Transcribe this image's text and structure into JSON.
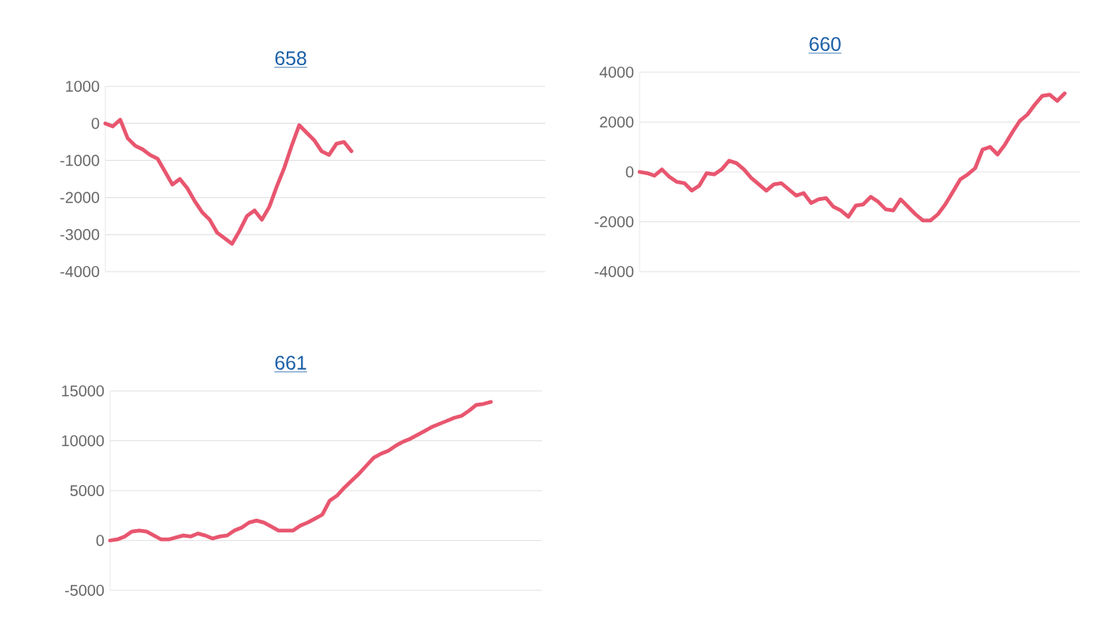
{
  "chart_data": [
    {
      "type": "line",
      "title": "658",
      "categories": [
        null,
        null,
        null,
        null,
        null,
        null,
        null,
        null,
        null,
        null,
        null,
        null,
        null,
        null,
        null,
        null,
        null,
        null,
        null,
        null,
        null,
        null,
        null,
        null,
        null,
        null,
        null,
        null,
        null,
        null,
        null,
        null,
        null,
        null,
        null,
        null,
        null,
        null,
        null,
        null,
        null,
        null,
        null,
        null,
        null,
        null,
        null,
        null,
        null,
        null,
        null,
        null,
        null,
        null,
        null,
        null,
        null,
        null,
        null,
        null
      ],
      "values": [
        0,
        -80,
        100,
        -400,
        -600,
        -700,
        -850,
        -950,
        -1300,
        -1650,
        -1500,
        -1750,
        -2100,
        -2400,
        -2600,
        -2950,
        -3100,
        -3250,
        -2900,
        -2500,
        -2350,
        -2600,
        -2250,
        -1700,
        -1200,
        -600,
        -50,
        -250,
        -450,
        -750,
        -850,
        -550,
        -500,
        -750,
        null,
        null,
        null,
        null,
        null,
        null,
        null,
        null,
        null,
        null,
        null,
        null,
        null,
        null,
        null,
        null,
        null,
        null,
        null,
        null,
        null,
        null,
        null,
        null,
        null,
        null
      ],
      "color": "#e8566f",
      "ylim": [
        -4000,
        1000
      ],
      "yticks": [
        -4000,
        -3000,
        -2000,
        -1000,
        0,
        1000
      ],
      "grid": "y",
      "tick_labels": "y"
    },
    {
      "type": "line",
      "title": "660",
      "categories": [
        null,
        null,
        null,
        null,
        null,
        null,
        null,
        null,
        null,
        null,
        null,
        null,
        null,
        null,
        null,
        null,
        null,
        null,
        null,
        null,
        null,
        null,
        null,
        null,
        null,
        null,
        null,
        null,
        null,
        null,
        null,
        null,
        null,
        null,
        null,
        null,
        null,
        null,
        null,
        null,
        null,
        null,
        null,
        null,
        null,
        null,
        null,
        null,
        null,
        null,
        null,
        null,
        null,
        null,
        null,
        null,
        null,
        null,
        null,
        null
      ],
      "values": [
        0,
        -50,
        -150,
        100,
        -200,
        -400,
        -450,
        -750,
        -550,
        -50,
        -100,
        100,
        450,
        350,
        100,
        -250,
        -500,
        -750,
        -500,
        -450,
        -700,
        -950,
        -850,
        -1250,
        -1100,
        -1050,
        -1400,
        -1550,
        -1800,
        -1350,
        -1300,
        -1000,
        -1200,
        -1500,
        -1550,
        -1100,
        -1400,
        -1700,
        -1950,
        -1950,
        -1700,
        -1300,
        -800,
        -300,
        -100,
        150,
        900,
        1000,
        700,
        1100,
        1600,
        2050,
        2300,
        2700,
        3050,
        3100,
        2850,
        3150,
        null,
        null
      ],
      "color": "#e8566f",
      "ylim": [
        -4000,
        4000
      ],
      "yticks": [
        -4000,
        -2000,
        0,
        2000,
        4000
      ],
      "grid": "y",
      "tick_labels": "y"
    },
    {
      "type": "line",
      "title": "661",
      "categories": [
        null,
        null,
        null,
        null,
        null,
        null,
        null,
        null,
        null,
        null,
        null,
        null,
        null,
        null,
        null,
        null,
        null,
        null,
        null,
        null,
        null,
        null,
        null,
        null,
        null,
        null,
        null,
        null,
        null,
        null,
        null,
        null,
        null,
        null,
        null,
        null,
        null,
        null,
        null,
        null,
        null,
        null,
        null,
        null,
        null,
        null,
        null,
        null,
        null,
        null,
        null,
        null,
        null,
        null,
        null,
        null,
        null,
        null,
        null,
        null
      ],
      "values": [
        0,
        100,
        400,
        900,
        1000,
        900,
        500,
        100,
        100,
        300,
        500,
        400,
        700,
        500,
        200,
        400,
        500,
        1000,
        1300,
        1800,
        2000,
        1800,
        1400,
        1000,
        1000,
        1000,
        1500,
        1800,
        2200,
        2600,
        4000,
        4500,
        5300,
        6000,
        6700,
        7500,
        8300,
        8700,
        9000,
        9500,
        9900,
        10200,
        10600,
        11000,
        11400,
        11700,
        12000,
        12300,
        12500,
        13000,
        13600,
        13700,
        13900,
        null,
        null,
        null,
        null,
        null,
        null,
        null
      ],
      "color": "#e8566f",
      "ylim": [
        -5000,
        15000
      ],
      "yticks": [
        -5000,
        0,
        5000,
        10000,
        15000
      ],
      "grid": "y",
      "tick_labels": "y"
    }
  ]
}
